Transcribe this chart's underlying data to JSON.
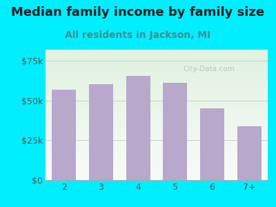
{
  "title": "Median family income by family size",
  "subtitle": "All residents in Jackson, MI",
  "categories": [
    "2",
    "3",
    "4",
    "5",
    "6",
    "7+"
  ],
  "values": [
    57000,
    60500,
    65500,
    61000,
    45000,
    34000
  ],
  "bar_color": "#b8a8cc",
  "title_fontsize": 13,
  "subtitle_fontsize": 10,
  "yticks": [
    0,
    25000,
    50000,
    75000
  ],
  "ytick_labels": [
    "$0",
    "$25k",
    "$50k",
    "$75k"
  ],
  "ylim": [
    0,
    82000
  ],
  "background_outer": "#00eeff",
  "background_inner_top": "#dff2e0",
  "background_inner_bottom": "#f8faf8",
  "watermark": "City-Data.com",
  "title_color": "#222222",
  "subtitle_color": "#4a8a8a",
  "tick_label_color": "#555555",
  "grid_color": "#cccccc"
}
